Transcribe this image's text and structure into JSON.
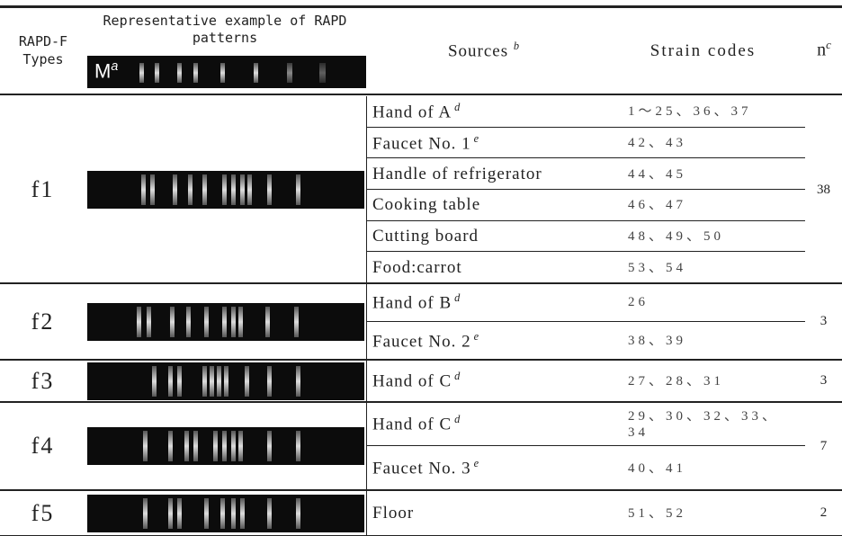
{
  "header": {
    "type_label_1": "RAPD-F",
    "type_label_2": "Types",
    "pattern_label": "Representative example of RAPD patterns",
    "marker": "M",
    "marker_sup": "a",
    "sources": "Sources",
    "sources_sup": "b",
    "strain_codes": "Strain codes",
    "n": "n",
    "n_sup": "c"
  },
  "groups": [
    {
      "type": "f1",
      "n": "38",
      "rows": [
        {
          "source": "Hand of  A",
          "sup": "d",
          "codes": "1～25、36、37"
        },
        {
          "source": "Faucet No. 1",
          "sup": "e",
          "codes": "42、43"
        },
        {
          "source": "Handle of refrigerator",
          "sup": null,
          "codes": "44、45"
        },
        {
          "source": "Cooking table",
          "sup": null,
          "codes": "46、47"
        },
        {
          "source": "Cutting board",
          "sup": null,
          "codes": "48、49、50"
        },
        {
          "source": "Food:carrot",
          "sup": null,
          "codes": "53、54"
        }
      ]
    },
    {
      "type": "f2",
      "n": "3",
      "rows": [
        {
          "source": "Hand of B",
          "sup": "d",
          "codes": "26"
        },
        {
          "source": "Faucet No. 2",
          "sup": "e",
          "codes": "38、39"
        }
      ]
    },
    {
      "type": "f3",
      "n": "3",
      "rows": [
        {
          "source": "Hand of C",
          "sup": "d",
          "codes": "27、28、31"
        }
      ]
    },
    {
      "type": "f4",
      "n": "7",
      "rows": [
        {
          "source": "Hand of C",
          "sup": "d",
          "codes": "29、30、32、33、34"
        },
        {
          "source": "Faucet No. 3",
          "sup": "e",
          "codes": "40、41"
        }
      ]
    },
    {
      "type": "f5",
      "n": "2",
      "rows": [
        {
          "source": "Floor",
          "sup": null,
          "codes": "51、52"
        }
      ]
    }
  ]
}
